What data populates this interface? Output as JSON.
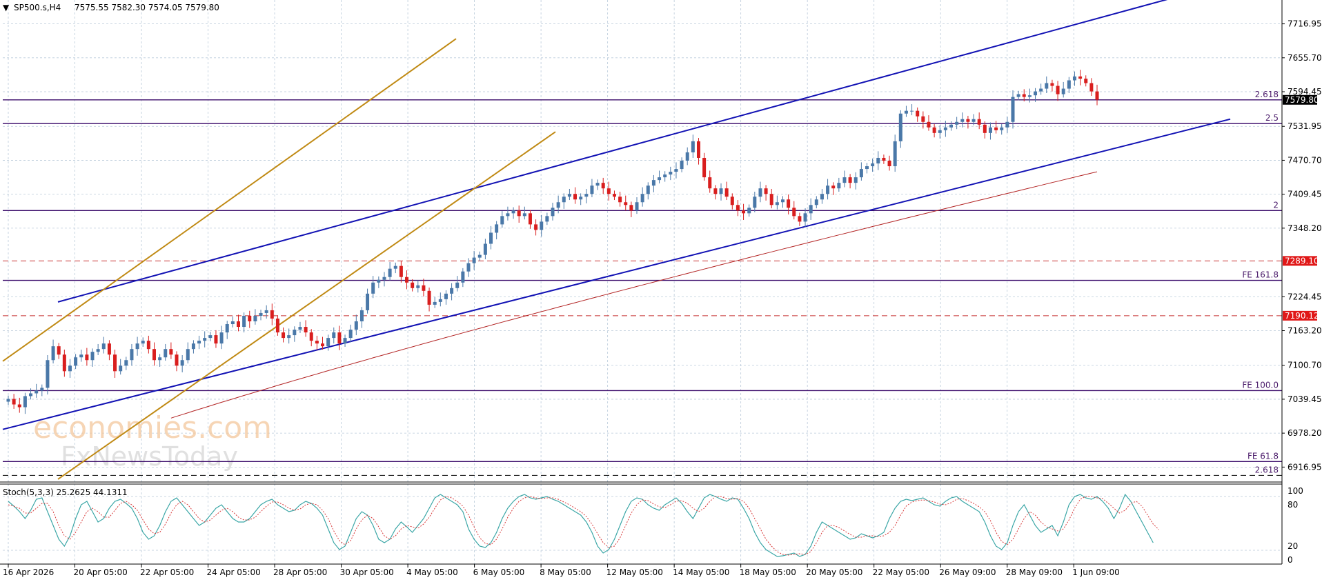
{
  "header": {
    "symbol": "SP500.s,H4",
    "ohlc": "7575.55 7582.30 7574.05 7579.80",
    "stoch_label": "Stoch(5,3,3) 25.2625 44.1311"
  },
  "watermark": {
    "line1": "economies.com",
    "line2": "FxNewsToday"
  },
  "colors": {
    "up_candle": "#4a78a8",
    "down_candle": "#d91e1e",
    "channel": "#1212b4",
    "gold_channel": "#c08a14",
    "level_line": "#3a0a6a",
    "ma": "#b22222",
    "stoch_main": "#3aa6a6",
    "stoch_signal": "#d83a3a",
    "price_tag_bg": "#000000",
    "red_tag_bg": "#e01818"
  },
  "chart_data": {
    "type": "candlestick",
    "symbol": "SP500.s",
    "timeframe": "H4",
    "price_ylim": [
      6890,
      7760
    ],
    "price_ticks": [
      "7716.95",
      "7655.70",
      "7594.45",
      "7531.95",
      "7470.70",
      "7409.45",
      "7348.20",
      "7224.45",
      "7163.20",
      "7100.70",
      "7039.45",
      "6978.20",
      "6916.95"
    ],
    "x_ticks": [
      "16 Apr 2026",
      "20 Apr 05:00",
      "22 Apr 05:00",
      "24 Apr 05:00",
      "28 Apr 05:00",
      "30 Apr 05:00",
      "4 May 05:00",
      "6 May 05:00",
      "8 May 05:00",
      "12 May 05:00",
      "14 May 05:00",
      "18 May 05:00",
      "20 May 05:00",
      "22 May 05:00",
      "26 May 09:00",
      "28 May 09:00",
      "1 Jun 09:00"
    ],
    "current_price": "7579.80",
    "closes": [
      7040,
      7030,
      7025,
      7045,
      7050,
      7055,
      7060,
      7110,
      7135,
      7120,
      7090,
      7100,
      7115,
      7120,
      7110,
      7125,
      7130,
      7140,
      7120,
      7090,
      7100,
      7110,
      7130,
      7140,
      7145,
      7130,
      7110,
      7115,
      7130,
      7120,
      7100,
      7110,
      7130,
      7140,
      7145,
      7150,
      7155,
      7140,
      7160,
      7175,
      7180,
      7170,
      7190,
      7180,
      7190,
      7195,
      7200,
      7185,
      7160,
      7150,
      7155,
      7165,
      7170,
      7160,
      7145,
      7140,
      7135,
      7150,
      7160,
      7140,
      7150,
      7165,
      7180,
      7200,
      7230,
      7250,
      7255,
      7260,
      7275,
      7280,
      7260,
      7250,
      7240,
      7245,
      7235,
      7210,
      7215,
      7220,
      7230,
      7240,
      7250,
      7270,
      7285,
      7295,
      7300,
      7320,
      7340,
      7355,
      7370,
      7375,
      7380,
      7370,
      7375,
      7355,
      7345,
      7360,
      7370,
      7385,
      7395,
      7405,
      7410,
      7400,
      7405,
      7410,
      7425,
      7430,
      7420,
      7410,
      7405,
      7395,
      7390,
      7380,
      7395,
      7410,
      7425,
      7435,
      7440,
      7445,
      7450,
      7455,
      7470,
      7485,
      7505,
      7475,
      7440,
      7420,
      7410,
      7420,
      7405,
      7390,
      7380,
      7375,
      7385,
      7405,
      7420,
      7410,
      7390,
      7395,
      7400,
      7385,
      7370,
      7360,
      7375,
      7390,
      7400,
      7410,
      7425,
      7420,
      7430,
      7440,
      7430,
      7440,
      7455,
      7460,
      7465,
      7475,
      7470,
      7460,
      7505,
      7555,
      7560,
      7560,
      7550,
      7540,
      7530,
      7520,
      7525,
      7530,
      7535,
      7540,
      7545,
      7540,
      7545,
      7535,
      7520,
      7530,
      7525,
      7530,
      7540,
      7585,
      7590,
      7585,
      7588,
      7595,
      7600,
      7610,
      7605,
      7590,
      7600,
      7615,
      7622,
      7618,
      7610,
      7595,
      7580
    ],
    "levels": [
      {
        "label": "2.618",
        "value": 7579.8,
        "style": "solid"
      },
      {
        "label": "2.5",
        "value": 7537.0,
        "style": "solid"
      },
      {
        "label": "2",
        "value": 7380.0,
        "style": "solid"
      },
      {
        "label": "7289.10",
        "value": 7289.1,
        "style": "dashed-red"
      },
      {
        "label": "FE 161.8",
        "value": 7254.0,
        "style": "solid"
      },
      {
        "label": "7190.12",
        "value": 7190.12,
        "style": "dashed-red"
      },
      {
        "label": "FE 100.0",
        "value": 7055.0,
        "style": "solid"
      },
      {
        "label": "FE 61.8",
        "value": 6927.0,
        "style": "solid"
      },
      {
        "label": "2.618",
        "value": 6902.0,
        "style": "dashed-black"
      }
    ],
    "red_tags": [
      "7289.10",
      "7190.12"
    ],
    "stochastic": {
      "label": "Stoch(5,3,3) 25.2625 44.1311",
      "ylim": [
        0,
        100
      ],
      "ticks": [
        "100",
        "80",
        "20",
        "0"
      ],
      "main": [
        85,
        78,
        70,
        60,
        72,
        88,
        90,
        70,
        50,
        30,
        20,
        35,
        60,
        80,
        85,
        70,
        55,
        60,
        75,
        85,
        88,
        82,
        75,
        60,
        40,
        30,
        35,
        50,
        70,
        85,
        90,
        80,
        70,
        60,
        50,
        55,
        65,
        75,
        80,
        70,
        60,
        55,
        55,
        60,
        70,
        80,
        85,
        88,
        80,
        75,
        70,
        72,
        80,
        85,
        82,
        75,
        65,
        45,
        25,
        15,
        20,
        40,
        60,
        70,
        65,
        50,
        30,
        25,
        30,
        45,
        55,
        48,
        40,
        50,
        60,
        75,
        90,
        95,
        90,
        85,
        80,
        70,
        45,
        30,
        20,
        18,
        25,
        40,
        60,
        75,
        85,
        92,
        95,
        90,
        88,
        90,
        92,
        88,
        85,
        80,
        75,
        70,
        65,
        55,
        40,
        20,
        10,
        15,
        30,
        50,
        70,
        85,
        90,
        88,
        80,
        75,
        72,
        80,
        85,
        90,
        82,
        70,
        60,
        75,
        90,
        95,
        92,
        88,
        85,
        90,
        88,
        75,
        60,
        40,
        25,
        15,
        10,
        5,
        6,
        8,
        10,
        5,
        8,
        20,
        40,
        55,
        50,
        45,
        40,
        35,
        30,
        32,
        38,
        35,
        32,
        35,
        40,
        60,
        75,
        85,
        88,
        86,
        88,
        90,
        85,
        80,
        78,
        85,
        90,
        92,
        85,
        80,
        75,
        70,
        55,
        35,
        20,
        15,
        25,
        50,
        70,
        80,
        65,
        50,
        40,
        45,
        50,
        35,
        55,
        80,
        92,
        95,
        90,
        88,
        92,
        85,
        75,
        60,
        75,
        95,
        85,
        70,
        55,
        40,
        25
      ],
      "signal": [
        80,
        78,
        75,
        68,
        68,
        75,
        82,
        82,
        70,
        50,
        35,
        30,
        40,
        55,
        70,
        75,
        70,
        62,
        62,
        72,
        82,
        85,
        80,
        72,
        58,
        45,
        38,
        40,
        52,
        68,
        80,
        85,
        80,
        70,
        60,
        55,
        58,
        65,
        72,
        75,
        70,
        62,
        58,
        58,
        62,
        70,
        78,
        84,
        84,
        80,
        75,
        72,
        74,
        80,
        82,
        80,
        72,
        60,
        42,
        28,
        22,
        28,
        45,
        58,
        65,
        60,
        48,
        35,
        30,
        35,
        45,
        50,
        48,
        46,
        52,
        62,
        75,
        87,
        92,
        90,
        85,
        78,
        65,
        48,
        32,
        24,
        22,
        30,
        45,
        62,
        75,
        85,
        90,
        92,
        90,
        89,
        90,
        90,
        88,
        84,
        80,
        75,
        70,
        63,
        52,
        38,
        25,
        18,
        20,
        32,
        50,
        68,
        80,
        87,
        86,
        81,
        77,
        76,
        80,
        85,
        86,
        82,
        75,
        70,
        75,
        85,
        92,
        92,
        89,
        88,
        89,
        85,
        75,
        60,
        45,
        30,
        20,
        12,
        8,
        7,
        8,
        9,
        8,
        12,
        25,
        40,
        50,
        50,
        47,
        42,
        37,
        33,
        33,
        35,
        35,
        34,
        35,
        40,
        50,
        65,
        78,
        84,
        86,
        87,
        86,
        84,
        81,
        80,
        83,
        88,
        89,
        86,
        82,
        77,
        70,
        57,
        40,
        27,
        22,
        30,
        45,
        60,
        70,
        65,
        55,
        48,
        45,
        42,
        45,
        58,
        75,
        88,
        92,
        92,
        90,
        89,
        82,
        75,
        68,
        72,
        82,
        85,
        78,
        65,
        52,
        44
      ]
    }
  }
}
